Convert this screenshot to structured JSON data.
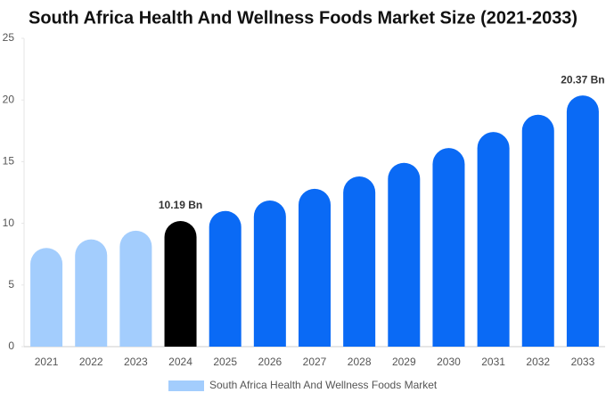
{
  "chart_data": {
    "type": "bar",
    "title": "South Africa Health And Wellness Foods Market Size (2021-2033)",
    "categories": [
      "2021",
      "2022",
      "2023",
      "2024",
      "2025",
      "2026",
      "2027",
      "2028",
      "2029",
      "2030",
      "2031",
      "2032",
      "2033"
    ],
    "series": [
      {
        "name": "South Africa Health And Wellness Foods Market",
        "color": "#a3cdfd",
        "values": [
          8.0,
          8.7,
          9.4,
          10.19,
          11.0,
          11.85,
          12.8,
          13.8,
          14.9,
          16.1,
          17.4,
          18.8,
          20.37
        ],
        "value_labels": [
          null,
          null,
          null,
          "10.19 Bn",
          null,
          null,
          null,
          null,
          null,
          null,
          null,
          null,
          "20.37 Bn"
        ],
        "colors": [
          "#a3cdfd",
          "#a3cdfd",
          "#a3cdfd",
          "#000000",
          "#0a6af5",
          "#0a6af5",
          "#0a6af5",
          "#0a6af5",
          "#0a6af5",
          "#0a6af5",
          "#0a6af5",
          "#0a6af5",
          "#0a6af5"
        ]
      }
    ],
    "ylim": [
      0,
      25
    ],
    "yticks": [
      0,
      5,
      10,
      15,
      20,
      25
    ],
    "legend": "bottom"
  }
}
